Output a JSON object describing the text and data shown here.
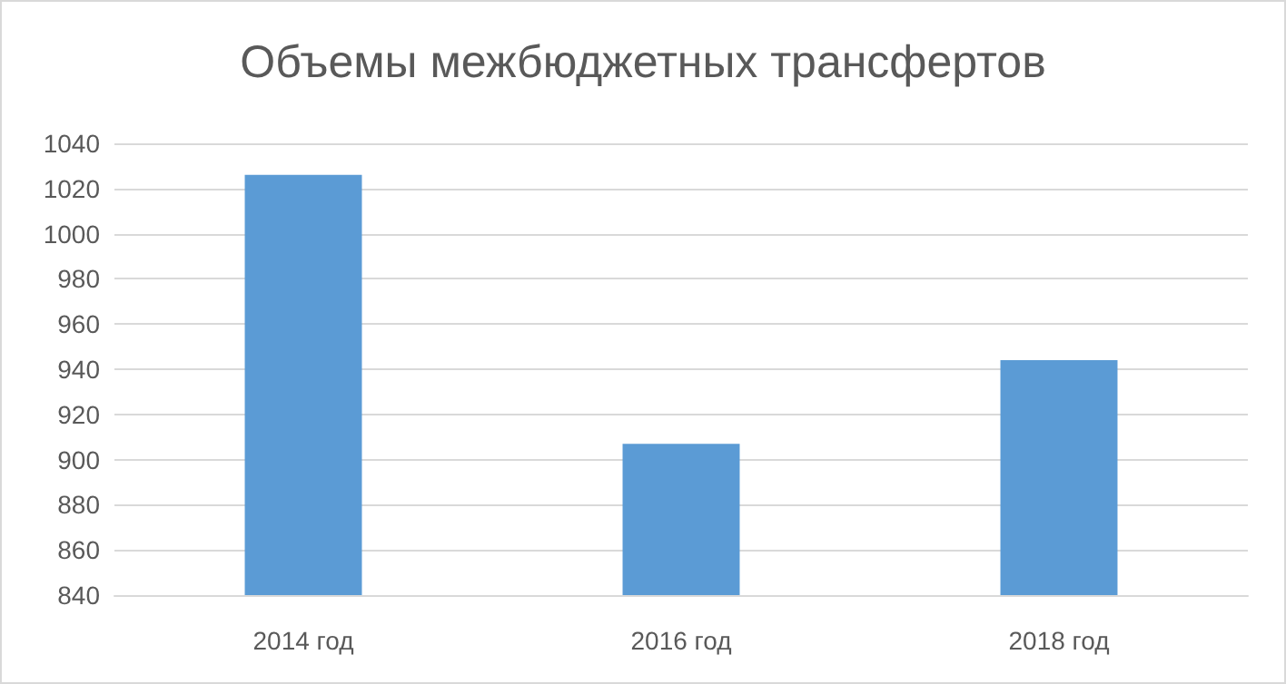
{
  "chart_data": {
    "type": "bar",
    "title": "Объемы межбюджетных трансфертов",
    "categories": [
      "2014 год",
      "2016 год",
      "2018 год"
    ],
    "values": [
      1026,
      907,
      944
    ],
    "color": "#5b9bd5",
    "ylim": [
      840,
      1040
    ],
    "yticks": [
      840,
      860,
      880,
      900,
      920,
      940,
      960,
      980,
      1000,
      1020,
      1040
    ],
    "grid": "y"
  }
}
